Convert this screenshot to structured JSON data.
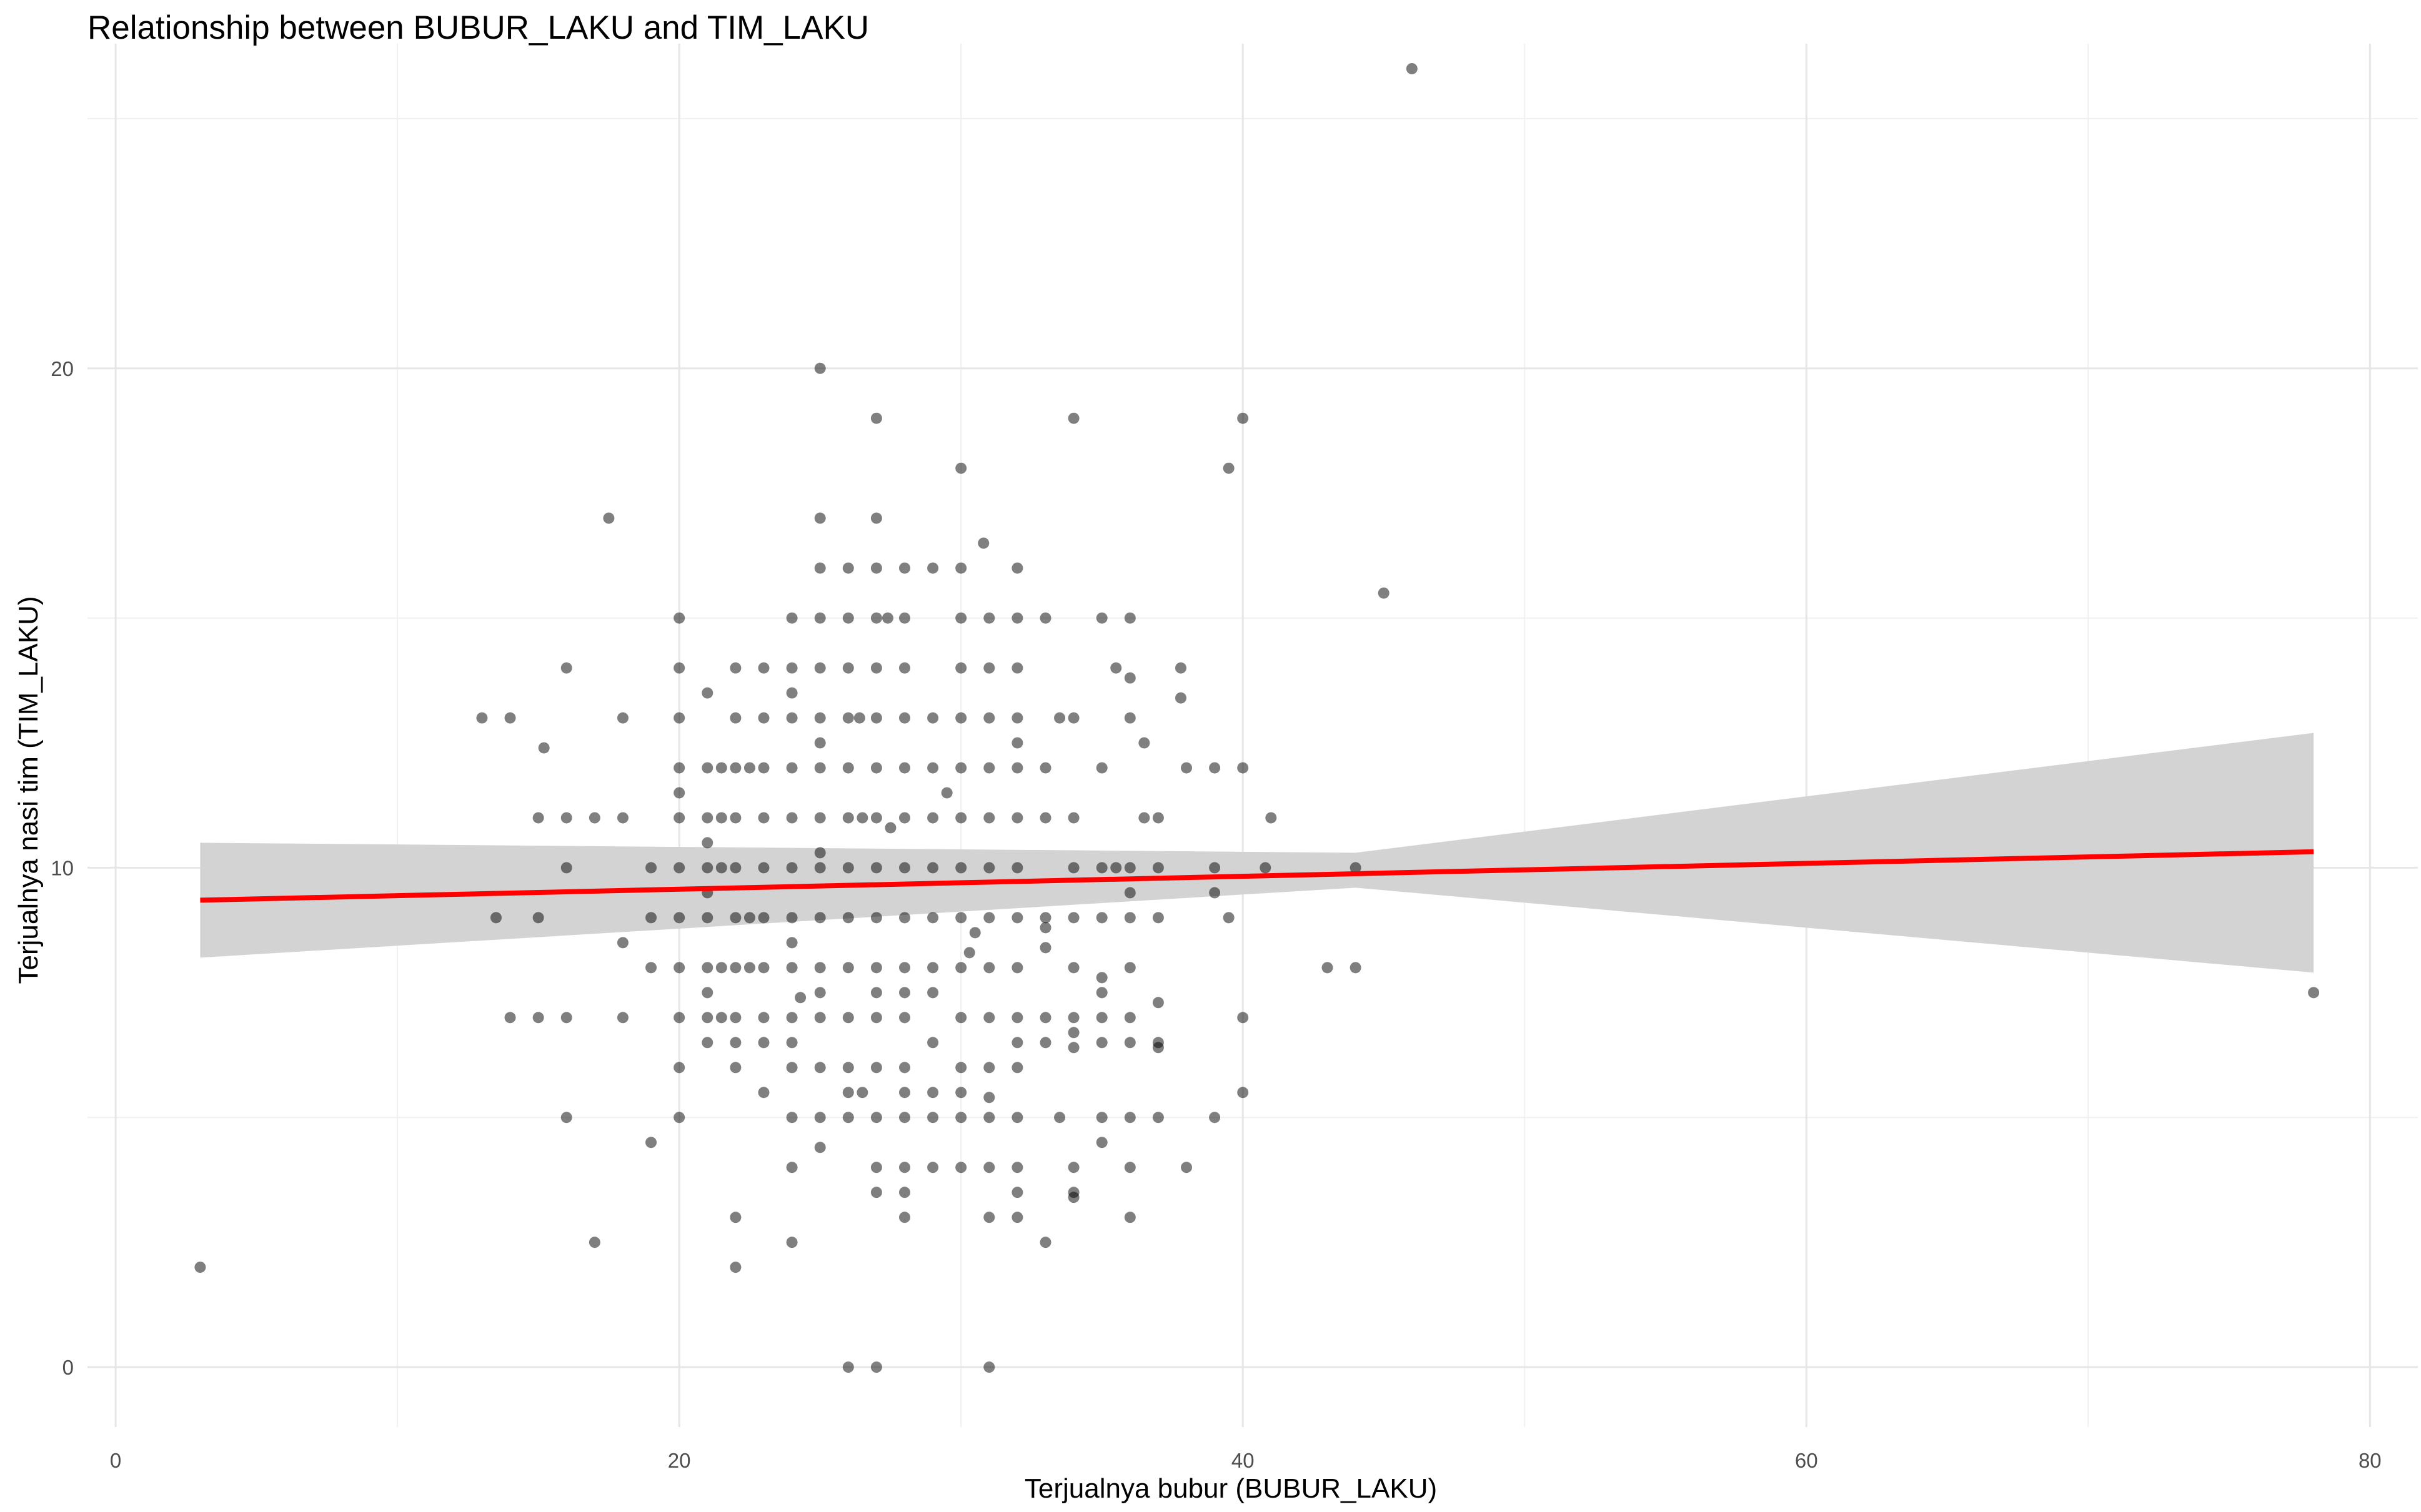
{
  "chart_data": {
    "type": "scatter",
    "title": "Relationship between BUBUR_LAKU and TIM_LAKU",
    "xlabel": "Terjualnya bubur (BUBUR_LAKU)",
    "ylabel": "Terjualnya nasi tim (TIM_LAKU)",
    "xlim": [
      -1,
      81.7
    ],
    "ylim": [
      -1.2,
      26.5
    ],
    "x_ticks": [
      0,
      20,
      40,
      60,
      80
    ],
    "y_ticks": [
      0,
      10,
      20
    ],
    "x_tick_labels": [
      "0",
      "20",
      "40",
      "60",
      "80"
    ],
    "y_tick_labels": [
      "0",
      "10",
      "20"
    ],
    "grid": true,
    "point_color": "#000000",
    "point_opacity": 0.5,
    "fit_line": {
      "type": "linear",
      "color": "#ff0000",
      "x": [
        3,
        78
      ],
      "y": [
        9.35,
        10.32
      ]
    },
    "confidence_band": {
      "color": "#d3d3d3",
      "x": [
        3,
        44,
        78
      ],
      "lower": [
        8.2,
        9.6,
        7.9
      ],
      "upper": [
        10.5,
        10.3,
        12.7
      ]
    },
    "points": [
      [
        3,
        2
      ],
      [
        13,
        13
      ],
      [
        13.5,
        9
      ],
      [
        14,
        13
      ],
      [
        14,
        7
      ],
      [
        15,
        11
      ],
      [
        15,
        9
      ],
      [
        15,
        7
      ],
      [
        15.2,
        12.4
      ],
      [
        16,
        14
      ],
      [
        16,
        11
      ],
      [
        16,
        10
      ],
      [
        16,
        7
      ],
      [
        16,
        5
      ],
      [
        17,
        11
      ],
      [
        17,
        2.5
      ],
      [
        17.5,
        17
      ],
      [
        18,
        13
      ],
      [
        18,
        11
      ],
      [
        18,
        8.5
      ],
      [
        18,
        7
      ],
      [
        19,
        10
      ],
      [
        19,
        9
      ],
      [
        19,
        8
      ],
      [
        19,
        4.5
      ],
      [
        20,
        15
      ],
      [
        20,
        14
      ],
      [
        20,
        13
      ],
      [
        20,
        12
      ],
      [
        20,
        11.5
      ],
      [
        20,
        11
      ],
      [
        20,
        10
      ],
      [
        20,
        9
      ],
      [
        20,
        8
      ],
      [
        20,
        7
      ],
      [
        20,
        6
      ],
      [
        20,
        5
      ],
      [
        21,
        13.5
      ],
      [
        21,
        12
      ],
      [
        21,
        11
      ],
      [
        21,
        10.5
      ],
      [
        21,
        10
      ],
      [
        21,
        9.5
      ],
      [
        21,
        9
      ],
      [
        21,
        8
      ],
      [
        21,
        7.5
      ],
      [
        21,
        7
      ],
      [
        21,
        6.5
      ],
      [
        21.5,
        12
      ],
      [
        21.5,
        11
      ],
      [
        21.5,
        10
      ],
      [
        21.5,
        8
      ],
      [
        21.5,
        7
      ],
      [
        22,
        14
      ],
      [
        22,
        13
      ],
      [
        22,
        12
      ],
      [
        22,
        11
      ],
      [
        22,
        10
      ],
      [
        22,
        9
      ],
      [
        22,
        8
      ],
      [
        22,
        7
      ],
      [
        22,
        6.5
      ],
      [
        22,
        6
      ],
      [
        22,
        3
      ],
      [
        22,
        2
      ],
      [
        22.5,
        12
      ],
      [
        22.5,
        9
      ],
      [
        22.5,
        8
      ],
      [
        23,
        14
      ],
      [
        23,
        13
      ],
      [
        23,
        12
      ],
      [
        23,
        11
      ],
      [
        23,
        10
      ],
      [
        23,
        9
      ],
      [
        23,
        8
      ],
      [
        23,
        7
      ],
      [
        23,
        6.5
      ],
      [
        23,
        5.5
      ],
      [
        24,
        15
      ],
      [
        24,
        14
      ],
      [
        24,
        13.5
      ],
      [
        24,
        13
      ],
      [
        24,
        12
      ],
      [
        24,
        11
      ],
      [
        24,
        10
      ],
      [
        24,
        9
      ],
      [
        24,
        8.5
      ],
      [
        24,
        8
      ],
      [
        24,
        7
      ],
      [
        24,
        6.5
      ],
      [
        24,
        6
      ],
      [
        24,
        5
      ],
      [
        24,
        4
      ],
      [
        24,
        2.5
      ],
      [
        24.3,
        7.4
      ],
      [
        25,
        20
      ],
      [
        25,
        17
      ],
      [
        25,
        16
      ],
      [
        25,
        15
      ],
      [
        25,
        14
      ],
      [
        25,
        13
      ],
      [
        25,
        12.5
      ],
      [
        25,
        12
      ],
      [
        25,
        11
      ],
      [
        25,
        10.3
      ],
      [
        25,
        10
      ],
      [
        25,
        9
      ],
      [
        25,
        8
      ],
      [
        25,
        7.5
      ],
      [
        25,
        7
      ],
      [
        25,
        6
      ],
      [
        25,
        5
      ],
      [
        25,
        4.4
      ],
      [
        26,
        16
      ],
      [
        26,
        15
      ],
      [
        26,
        14
      ],
      [
        26,
        13
      ],
      [
        26,
        12
      ],
      [
        26,
        11
      ],
      [
        26,
        10
      ],
      [
        26,
        9
      ],
      [
        26,
        8
      ],
      [
        26,
        7
      ],
      [
        26,
        6
      ],
      [
        26,
        5.5
      ],
      [
        26,
        5
      ],
      [
        26,
        0
      ],
      [
        26.4,
        13
      ],
      [
        26.5,
        11
      ],
      [
        26.5,
        5.5
      ],
      [
        27,
        19
      ],
      [
        27,
        17
      ],
      [
        27,
        16
      ],
      [
        27,
        15
      ],
      [
        27,
        14
      ],
      [
        27,
        13
      ],
      [
        27,
        12
      ],
      [
        27,
        11
      ],
      [
        27,
        10
      ],
      [
        27,
        9
      ],
      [
        27,
        8
      ],
      [
        27,
        7.5
      ],
      [
        27,
        7
      ],
      [
        27,
        6
      ],
      [
        27,
        5
      ],
      [
        27,
        4
      ],
      [
        27,
        3.5
      ],
      [
        27,
        0
      ],
      [
        27.4,
        15
      ],
      [
        27.5,
        10.8
      ],
      [
        28,
        16
      ],
      [
        28,
        15
      ],
      [
        28,
        14
      ],
      [
        28,
        13
      ],
      [
        28,
        12
      ],
      [
        28,
        11
      ],
      [
        28,
        10
      ],
      [
        28,
        9
      ],
      [
        28,
        8
      ],
      [
        28,
        7.5
      ],
      [
        28,
        7
      ],
      [
        28,
        6
      ],
      [
        28,
        5.5
      ],
      [
        28,
        5
      ],
      [
        28,
        4
      ],
      [
        28,
        3.5
      ],
      [
        28,
        3
      ],
      [
        29,
        16
      ],
      [
        29,
        13
      ],
      [
        29,
        12
      ],
      [
        29,
        11
      ],
      [
        29,
        10
      ],
      [
        29,
        9
      ],
      [
        29,
        8
      ],
      [
        29,
        7.5
      ],
      [
        29,
        6.5
      ],
      [
        29,
        5.5
      ],
      [
        29,
        5
      ],
      [
        29,
        4
      ],
      [
        29.5,
        11.5
      ],
      [
        30,
        18
      ],
      [
        30,
        16
      ],
      [
        30,
        15
      ],
      [
        30,
        14
      ],
      [
        30,
        13
      ],
      [
        30,
        12
      ],
      [
        30,
        11
      ],
      [
        30,
        10
      ],
      [
        30,
        9
      ],
      [
        30,
        8
      ],
      [
        30,
        7
      ],
      [
        30,
        6
      ],
      [
        30,
        5.5
      ],
      [
        30,
        5
      ],
      [
        30,
        4
      ],
      [
        30.3,
        8.3
      ],
      [
        30.5,
        8.7
      ],
      [
        30.8,
        16.5
      ],
      [
        31,
        15
      ],
      [
        31,
        14
      ],
      [
        31,
        13
      ],
      [
        31,
        12
      ],
      [
        31,
        11
      ],
      [
        31,
        10
      ],
      [
        31,
        9
      ],
      [
        31,
        8
      ],
      [
        31,
        7
      ],
      [
        31,
        6
      ],
      [
        31,
        5.4
      ],
      [
        31,
        5
      ],
      [
        31,
        4
      ],
      [
        31,
        3
      ],
      [
        31,
        0
      ],
      [
        32,
        16
      ],
      [
        32,
        15
      ],
      [
        32,
        14
      ],
      [
        32,
        13
      ],
      [
        32,
        12.5
      ],
      [
        32,
        12
      ],
      [
        32,
        11
      ],
      [
        32,
        10
      ],
      [
        32,
        9
      ],
      [
        32,
        8
      ],
      [
        32,
        7
      ],
      [
        32,
        6.5
      ],
      [
        32,
        6
      ],
      [
        32,
        5
      ],
      [
        32,
        4
      ],
      [
        32,
        3.5
      ],
      [
        32,
        3
      ],
      [
        33,
        15
      ],
      [
        33,
        12
      ],
      [
        33,
        11
      ],
      [
        33,
        9
      ],
      [
        33,
        8.8
      ],
      [
        33,
        8.4
      ],
      [
        33,
        7
      ],
      [
        33,
        6.5
      ],
      [
        33,
        2.5
      ],
      [
        33.5,
        13
      ],
      [
        33.5,
        5
      ],
      [
        34,
        19
      ],
      [
        34,
        13
      ],
      [
        34,
        11
      ],
      [
        34,
        10
      ],
      [
        34,
        9
      ],
      [
        34,
        8
      ],
      [
        34,
        7
      ],
      [
        34,
        6.7
      ],
      [
        34,
        6.4
      ],
      [
        34,
        4
      ],
      [
        34,
        3.5
      ],
      [
        34,
        3.4
      ],
      [
        35,
        15
      ],
      [
        35,
        12
      ],
      [
        35,
        10
      ],
      [
        35,
        9
      ],
      [
        35,
        7.8
      ],
      [
        35,
        7.5
      ],
      [
        35,
        7
      ],
      [
        35,
        6.5
      ],
      [
        35,
        5
      ],
      [
        35,
        4.5
      ],
      [
        35.5,
        14
      ],
      [
        35.5,
        10
      ],
      [
        36,
        15
      ],
      [
        36,
        13.8
      ],
      [
        36,
        13
      ],
      [
        36,
        10
      ],
      [
        36,
        9.5
      ],
      [
        36,
        9
      ],
      [
        36,
        8
      ],
      [
        36,
        7
      ],
      [
        36,
        6.5
      ],
      [
        36,
        5
      ],
      [
        36,
        4
      ],
      [
        36,
        3
      ],
      [
        36.5,
        12.5
      ],
      [
        36.5,
        11
      ],
      [
        37,
        11
      ],
      [
        37,
        10
      ],
      [
        37,
        9
      ],
      [
        37,
        7.3
      ],
      [
        37,
        6.5
      ],
      [
        37,
        6.4
      ],
      [
        37,
        5
      ],
      [
        37.8,
        14
      ],
      [
        37.8,
        13.4
      ],
      [
        38,
        12
      ],
      [
        38,
        4
      ],
      [
        39,
        12
      ],
      [
        39,
        10
      ],
      [
        39,
        9.5
      ],
      [
        39,
        5
      ],
      [
        39.5,
        18
      ],
      [
        39.5,
        9
      ],
      [
        40,
        19
      ],
      [
        40,
        12
      ],
      [
        40,
        7
      ],
      [
        40,
        5.5
      ],
      [
        40.8,
        10
      ],
      [
        41,
        11
      ],
      [
        43,
        8
      ],
      [
        44,
        10
      ],
      [
        44,
        8
      ],
      [
        45,
        15.5
      ],
      [
        46,
        26
      ],
      [
        78,
        7.5
      ]
    ]
  }
}
